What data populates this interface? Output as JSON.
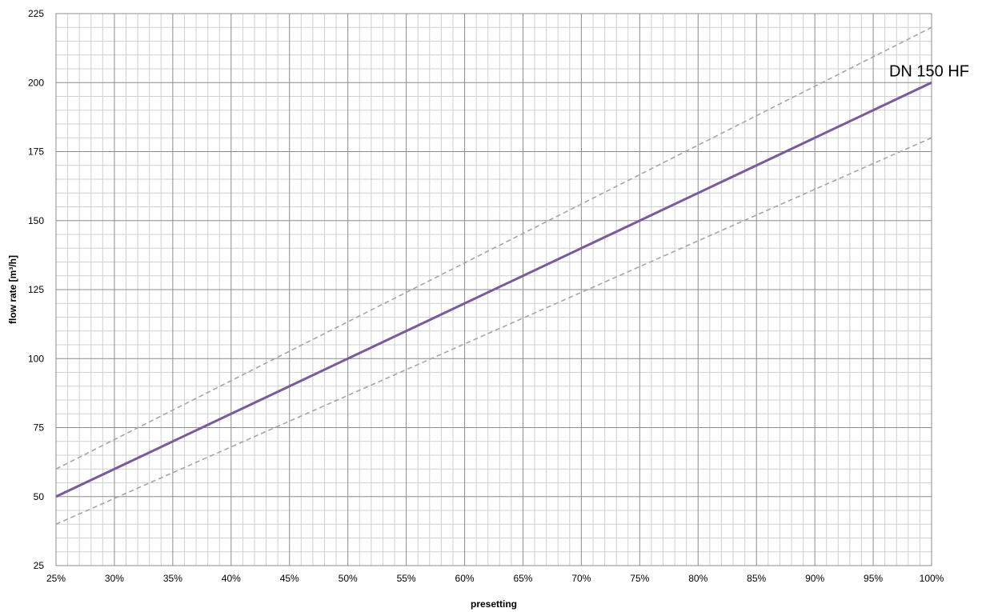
{
  "chart_data": {
    "type": "line",
    "xlabel": "presetting",
    "ylabel": "flow rate [m³/h]",
    "xlim": [
      25,
      100
    ],
    "ylim": [
      25,
      225
    ],
    "x_ticks": [
      25,
      30,
      35,
      40,
      45,
      50,
      55,
      60,
      65,
      70,
      75,
      80,
      85,
      90,
      95,
      100
    ],
    "x_tick_labels": [
      "25%",
      "30%",
      "35%",
      "40%",
      "45%",
      "50%",
      "55%",
      "60%",
      "65%",
      "70%",
      "75%",
      "80%",
      "85%",
      "90%",
      "95%",
      "100%"
    ],
    "y_ticks": [
      25,
      50,
      75,
      100,
      125,
      150,
      175,
      200,
      225
    ],
    "y_tick_labels": [
      "25",
      "50",
      "75",
      "100",
      "125",
      "150",
      "175",
      "200",
      "225"
    ],
    "grid": true,
    "series": [
      {
        "name": "DN 150 HF",
        "style": "solid",
        "color": "#7B5A9C",
        "x": [
          25,
          100
        ],
        "y": [
          50,
          200
        ]
      },
      {
        "style": "dashed",
        "color": "#A6A6A6",
        "x": [
          25,
          100
        ],
        "y": [
          60,
          220
        ]
      },
      {
        "style": "dashed",
        "color": "#A6A6A6",
        "x": [
          25,
          100
        ],
        "y": [
          40,
          180
        ]
      }
    ],
    "annotations": [
      {
        "text": "DN 150 HF",
        "x": 100,
        "y": 200
      }
    ]
  }
}
